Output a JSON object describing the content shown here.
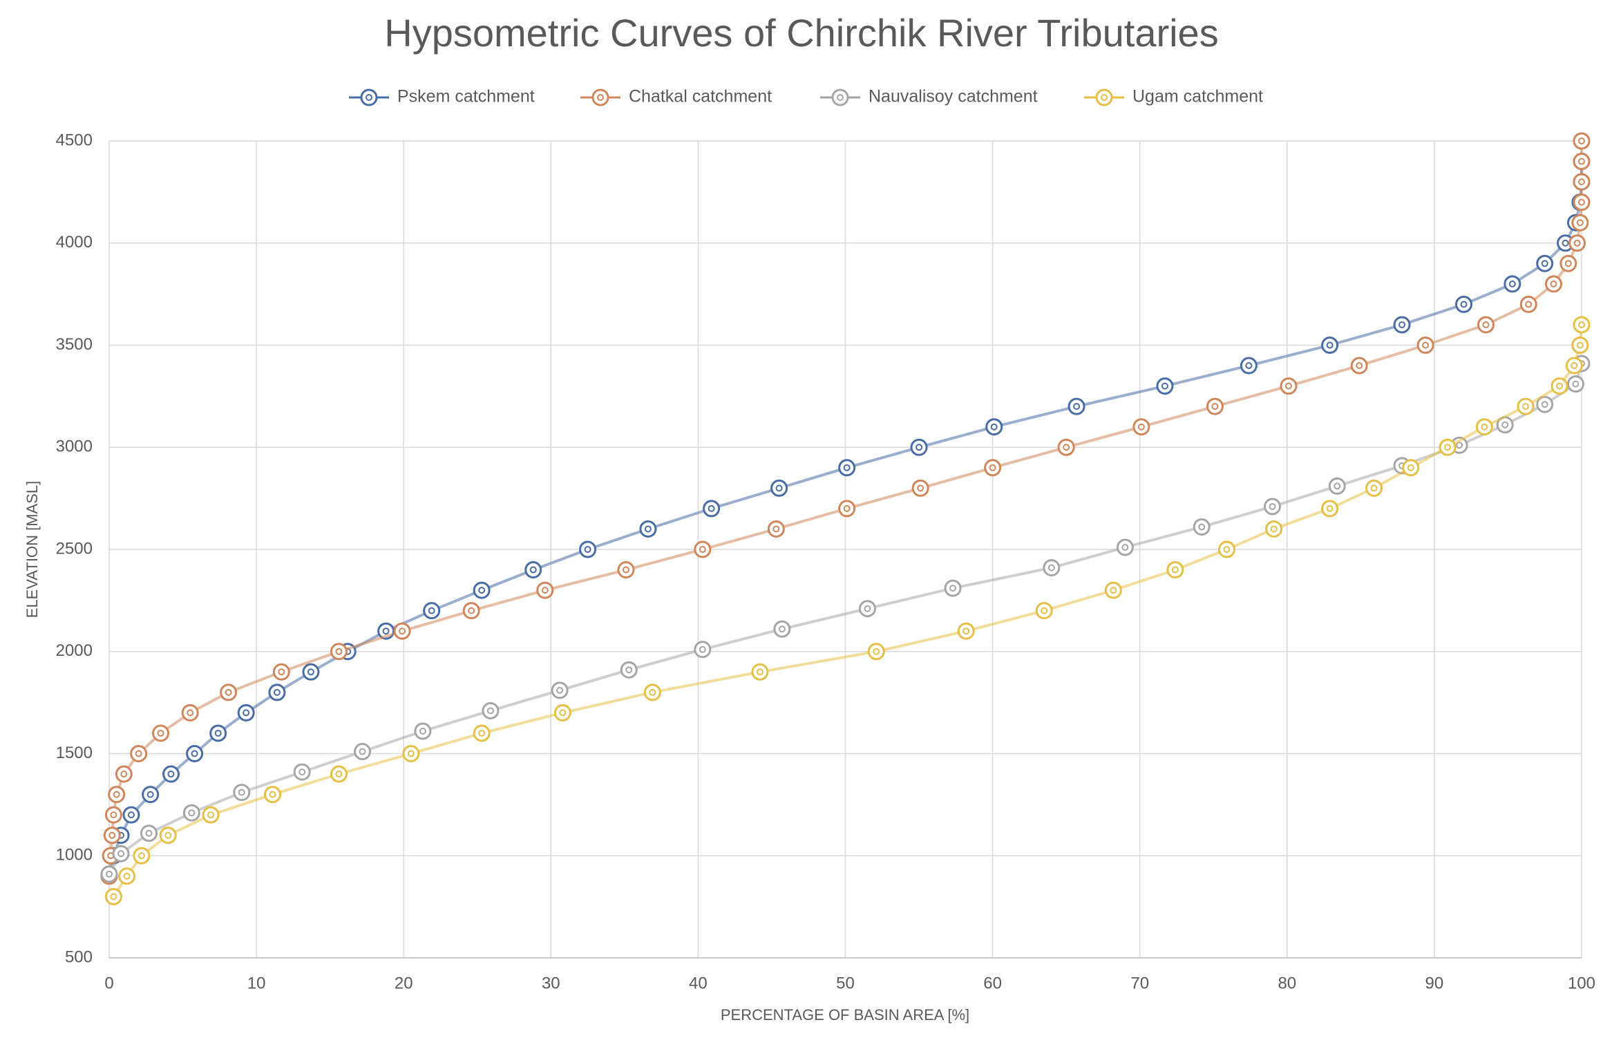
{
  "chart_data": {
    "type": "scatter",
    "title": "Hypsometric Curves of Chirchik River Tributaries",
    "x_label": "PERCENTAGE OF BASIN AREA [%]",
    "y_label": "ELEVATION [MASL]",
    "xlim": [
      0,
      100
    ],
    "ylim": [
      500,
      4500
    ],
    "xticks": [
      0,
      10,
      20,
      30,
      40,
      50,
      60,
      70,
      80,
      90,
      100
    ],
    "yticks": [
      500,
      1000,
      1500,
      2000,
      2500,
      3000,
      3500,
      4000,
      4500
    ],
    "grid": true,
    "legend": "top",
    "series": [
      {
        "name": "Pskem catchment",
        "color": "#4a6ca6",
        "x": [
          0,
          0.3,
          0.8,
          1.5,
          2.8,
          4.2,
          5.8,
          7.4,
          9.3,
          11.4,
          13.7,
          16.2,
          18.8,
          21.9,
          25.3,
          28.8,
          32.5,
          36.6,
          40.9,
          45.5,
          50.1,
          55,
          60.1,
          65.7,
          71.7,
          77.4,
          82.9,
          87.8,
          92,
          95.3,
          97.5,
          98.9,
          99.6,
          99.9,
          100,
          100
        ],
        "values": [
          900,
          1000,
          1100,
          1200,
          1300,
          1400,
          1500,
          1600,
          1700,
          1800,
          1900,
          2000,
          2100,
          2200,
          2300,
          2400,
          2500,
          2600,
          2700,
          2800,
          2900,
          3000,
          3100,
          3200,
          3300,
          3400,
          3500,
          3600,
          3700,
          3800,
          3900,
          4000,
          4100,
          4200,
          4300,
          4400
        ]
      },
      {
        "name": "Chatkal catchment",
        "color": "#d0865a",
        "x": [
          0,
          0.1,
          0.2,
          0.3,
          0.5,
          1,
          2,
          3.5,
          5.5,
          8.1,
          11.7,
          15.6,
          19.9,
          24.6,
          29.6,
          35.1,
          40.3,
          45.3,
          50.1,
          55.1,
          60,
          65,
          70.1,
          75.1,
          80.1,
          84.9,
          89.4,
          93.5,
          96.4,
          98.1,
          99.1,
          99.7,
          99.9,
          100,
          100,
          100,
          100
        ],
        "values": [
          900,
          1000,
          1100,
          1200,
          1300,
          1400,
          1500,
          1600,
          1700,
          1800,
          1900,
          2000,
          2100,
          2200,
          2300,
          2400,
          2500,
          2600,
          2700,
          2800,
          2900,
          3000,
          3100,
          3200,
          3300,
          3400,
          3500,
          3600,
          3700,
          3800,
          3900,
          4000,
          4100,
          4200,
          4300,
          4400,
          4500
        ]
      },
      {
        "name": "Nauvalisoy catchment",
        "color": "#a5a5a5",
        "x": [
          0,
          0.8,
          2.7,
          5.6,
          9,
          13.1,
          17.2,
          21.3,
          25.9,
          30.6,
          35.3,
          40.3,
          45.7,
          51.5,
          57.3,
          64,
          69,
          74.2,
          79,
          83.4,
          87.8,
          91.7,
          94.8,
          97.5,
          99.6,
          100
        ],
        "values": [
          910,
          1010,
          1110,
          1210,
          1310,
          1410,
          1510,
          1610,
          1710,
          1810,
          1910,
          2010,
          2110,
          2210,
          2310,
          2410,
          2510,
          2610,
          2710,
          2810,
          2910,
          3010,
          3110,
          3210,
          3310,
          3410
        ]
      },
      {
        "name": "Ugam catchment",
        "color": "#e6bf45",
        "x": [
          0.3,
          1.2,
          2.2,
          4,
          6.9,
          11.1,
          15.6,
          20.5,
          25.3,
          30.8,
          36.9,
          44.2,
          52.1,
          58.2,
          63.5,
          68.2,
          72.4,
          75.9,
          79.1,
          82.9,
          85.9,
          88.4,
          90.9,
          93.4,
          96.2,
          98.5,
          99.5,
          99.9,
          100
        ],
        "values": [
          800,
          900,
          1000,
          1100,
          1200,
          1300,
          1400,
          1500,
          1600,
          1700,
          1800,
          1900,
          2000,
          2100,
          2200,
          2300,
          2400,
          2500,
          2600,
          2700,
          2800,
          2900,
          3000,
          3100,
          3200,
          3300,
          3400,
          3500,
          3600
        ]
      }
    ]
  }
}
